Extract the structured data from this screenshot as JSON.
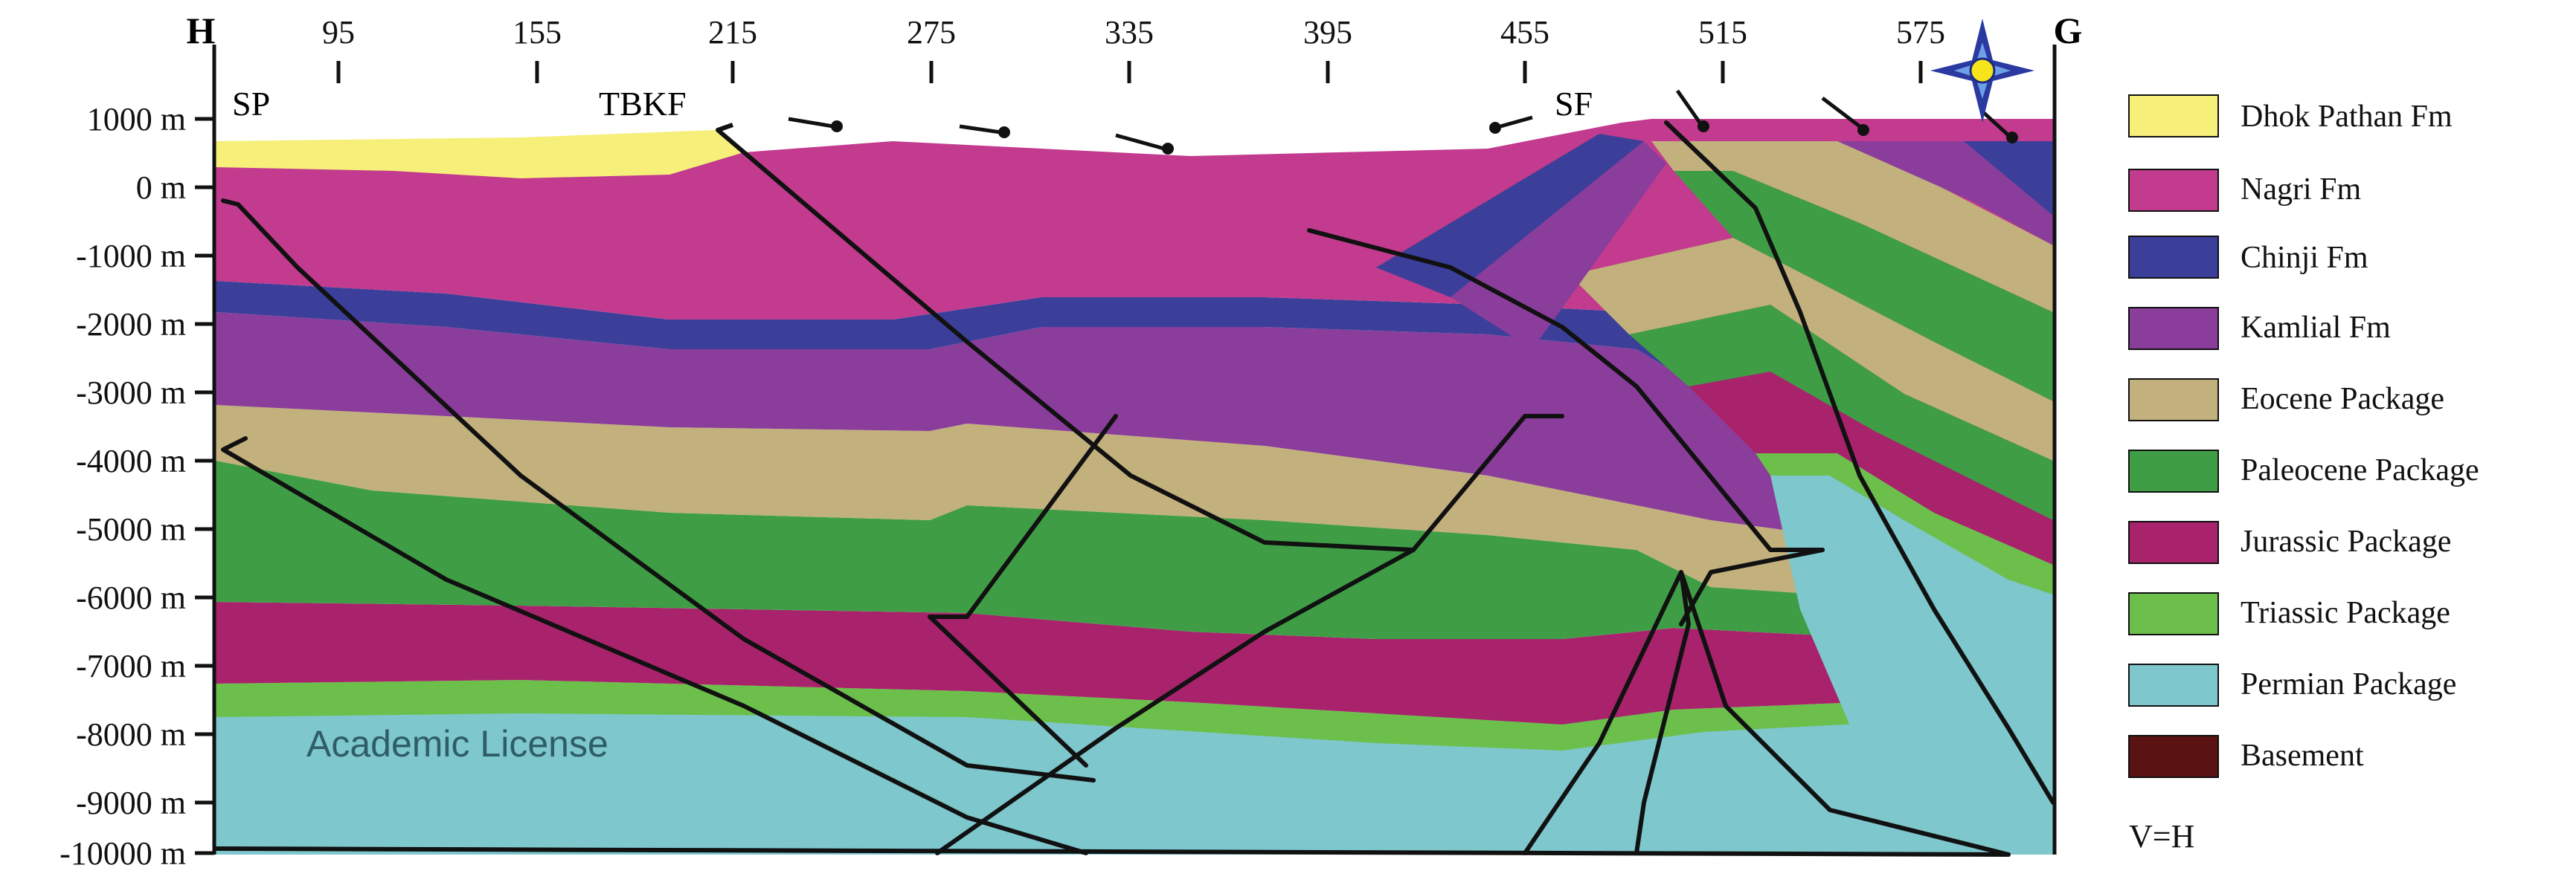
{
  "section_ends": {
    "left": "H",
    "right": "G"
  },
  "x_ticks": [
    "95",
    "155",
    "215",
    "275",
    "335",
    "395",
    "455",
    "515",
    "575"
  ],
  "depth_labels": [
    "1000 m",
    "0 m",
    "-1000 m",
    "-2000 m",
    "-3000 m",
    "-4000 m",
    "-5000 m",
    "-6000 m",
    "-7000 m",
    "-8000 m",
    "-9000 m",
    "-10000 m"
  ],
  "structure_labels": [
    "SP",
    "TBKF",
    "SF"
  ],
  "watermark": "Academic License",
  "legend": [
    {
      "label": "Dhok Pathan Fm",
      "color": "#f6ef7a"
    },
    {
      "label": "Nagri Fm",
      "color": "#c23b8e"
    },
    {
      "label": "Chinji Fm",
      "color": "#3b3f9a"
    },
    {
      "label": "Kamlial Fm",
      "color": "#8a3d9a"
    },
    {
      "label": "Eocene Package",
      "color": "#c2b07d"
    },
    {
      "label": "Paleocene Package",
      "color": "#3f9e45"
    },
    {
      "label": "Jurassic Package",
      "color": "#a8236c"
    },
    {
      "label": "Triassic Package",
      "color": "#6cbf4a"
    },
    {
      "label": "Permian Package",
      "color": "#7ec7cd"
    },
    {
      "label": "Basement",
      "color": "#5a1212"
    }
  ],
  "scale_note": "V=H",
  "icon": "compass-star-icon"
}
